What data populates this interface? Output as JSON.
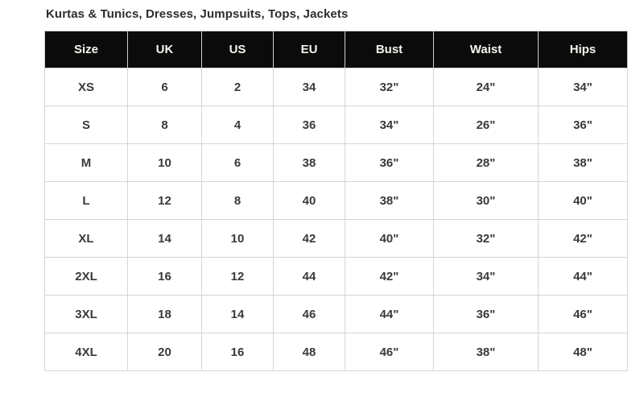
{
  "title": "Kurtas & Tunics, Dresses, Jumpsuits, Tops, Jackets",
  "colors": {
    "page_bg": "#ffffff",
    "header_bg": "#0b0b0b",
    "header_text": "#f6f3ec",
    "body_text": "#3a3a3a",
    "grid_border": "#d5d5d5"
  },
  "chart_data": {
    "type": "table",
    "title": "Kurtas & Tunics, Dresses, Jumpsuits, Tops, Jackets",
    "columns": [
      "Size",
      "UK",
      "US",
      "EU",
      "Bust",
      "Waist",
      "Hips"
    ],
    "rows": [
      [
        "XS",
        "6",
        "2",
        "34",
        "32\"",
        "24\"",
        "34\""
      ],
      [
        "S",
        "8",
        "4",
        "36",
        "34\"",
        "26\"",
        "36\""
      ],
      [
        "M",
        "10",
        "6",
        "38",
        "36\"",
        "28\"",
        "38\""
      ],
      [
        "L",
        "12",
        "8",
        "40",
        "38\"",
        "30\"",
        "40\""
      ],
      [
        "XL",
        "14",
        "10",
        "42",
        "40\"",
        "32\"",
        "42\""
      ],
      [
        "2XL",
        "16",
        "12",
        "44",
        "42\"",
        "34\"",
        "44\""
      ],
      [
        "3XL",
        "18",
        "14",
        "46",
        "44\"",
        "36\"",
        "46\""
      ],
      [
        "4XL",
        "20",
        "16",
        "48",
        "46\"",
        "38\"",
        "48\""
      ]
    ]
  }
}
